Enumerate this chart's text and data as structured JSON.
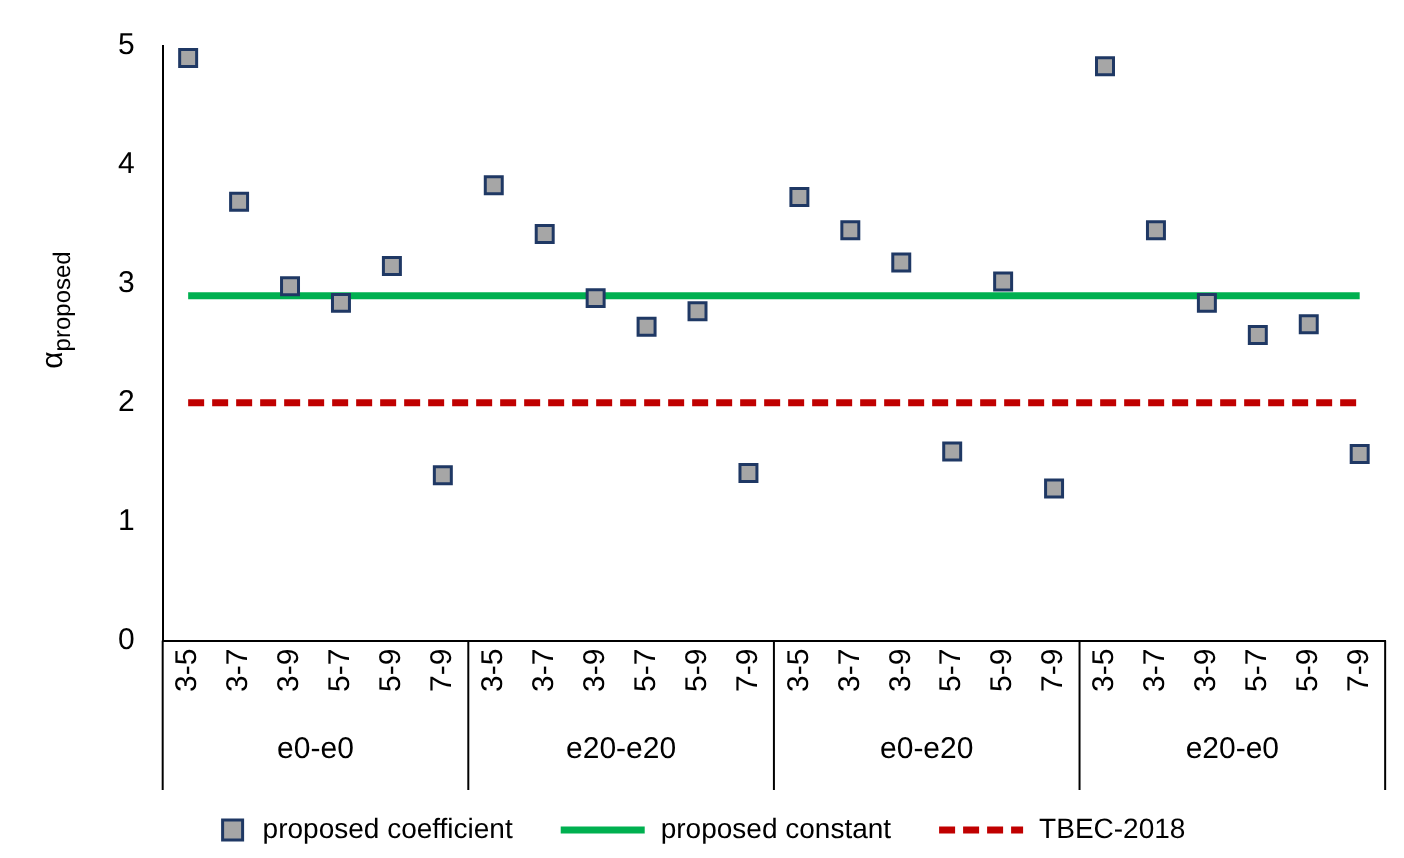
{
  "chart_data": {
    "type": "scatter",
    "ylabel": "α$_{proposed}$",
    "categories": [
      "3-5",
      "3-7",
      "3-9",
      "5-7",
      "5-9",
      "7-9",
      "3-5",
      "3-7",
      "3-9",
      "5-7",
      "5-9",
      "7-9",
      "3-5",
      "3-7",
      "3-9",
      "5-7",
      "5-9",
      "7-9",
      "3-5",
      "3-7",
      "3-9",
      "5-7",
      "5-9",
      "7-9"
    ],
    "annotations": [
      "e0-e0",
      "e20-e20",
      "e0-e20",
      "e20-e0"
    ],
    "series": [
      {
        "name": "proposed coefficient",
        "marker": "square",
        "color": "#a6a6a6",
        "values": [
          4.9,
          3.69,
          2.98,
          2.84,
          3.15,
          1.39,
          3.83,
          3.42,
          2.88,
          2.64,
          2.77,
          1.41,
          3.73,
          3.45,
          3.18,
          1.59,
          3.02,
          1.28,
          4.83,
          3.45,
          2.84,
          2.57,
          2.66,
          1.57
        ]
      },
      {
        "name": "proposed constant",
        "type": "line",
        "color": "#00b050",
        "line_style": "solid",
        "values": [
          2.9,
          2.9,
          2.9,
          2.9,
          2.9,
          2.9,
          2.9,
          2.9,
          2.9,
          2.9,
          2.9,
          2.9,
          2.9,
          2.9,
          2.9,
          2.9,
          2.9,
          2.9,
          2.9,
          2.9,
          2.9,
          2.9,
          2.9,
          2.9
        ]
      },
      {
        "name": "TBEC-2018",
        "type": "line",
        "color": "#c00000",
        "line_style": "dashed",
        "values": [
          2,
          2,
          2,
          2,
          2,
          2,
          2,
          2,
          2,
          2,
          2,
          2,
          2,
          2,
          2,
          2,
          2,
          2,
          2,
          2,
          2,
          2,
          2,
          2
        ]
      }
    ],
    "ylim": [
      0,
      5
    ],
    "yticks": [
      0,
      1,
      2,
      3,
      4,
      5
    ],
    "grid": false,
    "legend": "bottom"
  }
}
